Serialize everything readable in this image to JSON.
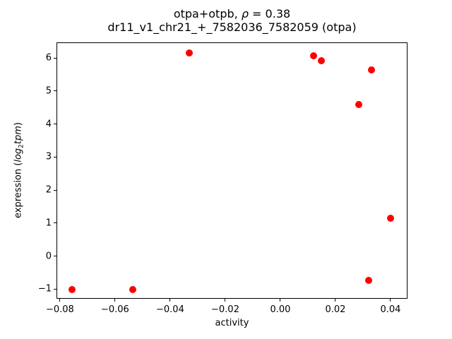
{
  "figure": {
    "title_line1": {
      "prefix": "otpa+otpb, ",
      "rho": "ρ",
      "suffix": " = 0.38"
    },
    "title_line2": "dr11_v1_chr21_+_7582036_7582059 (otpa)",
    "xlabel": "activity",
    "ylabel": {
      "prefix": "expression (",
      "log": "log",
      "sub": "2",
      "tpm": "tpm",
      "suffix": ")"
    }
  },
  "chart_data": {
    "type": "scatter",
    "title": "otpa+otpb, ρ = 0.38",
    "subtitle": "dr11_v1_chr21_+_7582036_7582059 (otpa)",
    "xlabel": "activity",
    "ylabel": "expression (log2 tpm)",
    "legend": null,
    "grid": false,
    "marker_color": "#ff0000",
    "spine_color": "#000000",
    "xlim": [
      -0.081,
      0.0459
    ],
    "ylim": [
      -1.27,
      6.45
    ],
    "x_ticks": [
      {
        "v": -0.08,
        "label": "−0.08"
      },
      {
        "v": -0.06,
        "label": "−0.06"
      },
      {
        "v": -0.04,
        "label": "−0.04"
      },
      {
        "v": -0.02,
        "label": "−0.02"
      },
      {
        "v": 0.0,
        "label": "0.00"
      },
      {
        "v": 0.02,
        "label": "0.02"
      },
      {
        "v": 0.04,
        "label": "0.04"
      }
    ],
    "y_ticks": [
      {
        "v": -1,
        "label": "−1"
      },
      {
        "v": 0,
        "label": "0"
      },
      {
        "v": 1,
        "label": "1"
      },
      {
        "v": 2,
        "label": "2"
      },
      {
        "v": 3,
        "label": "3"
      },
      {
        "v": 4,
        "label": "4"
      },
      {
        "v": 5,
        "label": "5"
      },
      {
        "v": 6,
        "label": "6"
      }
    ],
    "points": [
      [
        -0.0756,
        -1.02
      ],
      [
        -0.0535,
        -1.02
      ],
      [
        -0.0331,
        6.14
      ],
      [
        0.0121,
        6.06
      ],
      [
        0.015,
        5.92
      ],
      [
        0.033,
        5.64
      ],
      [
        0.0284,
        4.58
      ],
      [
        0.04,
        1.14
      ],
      [
        0.0321,
        -0.74
      ]
    ]
  }
}
